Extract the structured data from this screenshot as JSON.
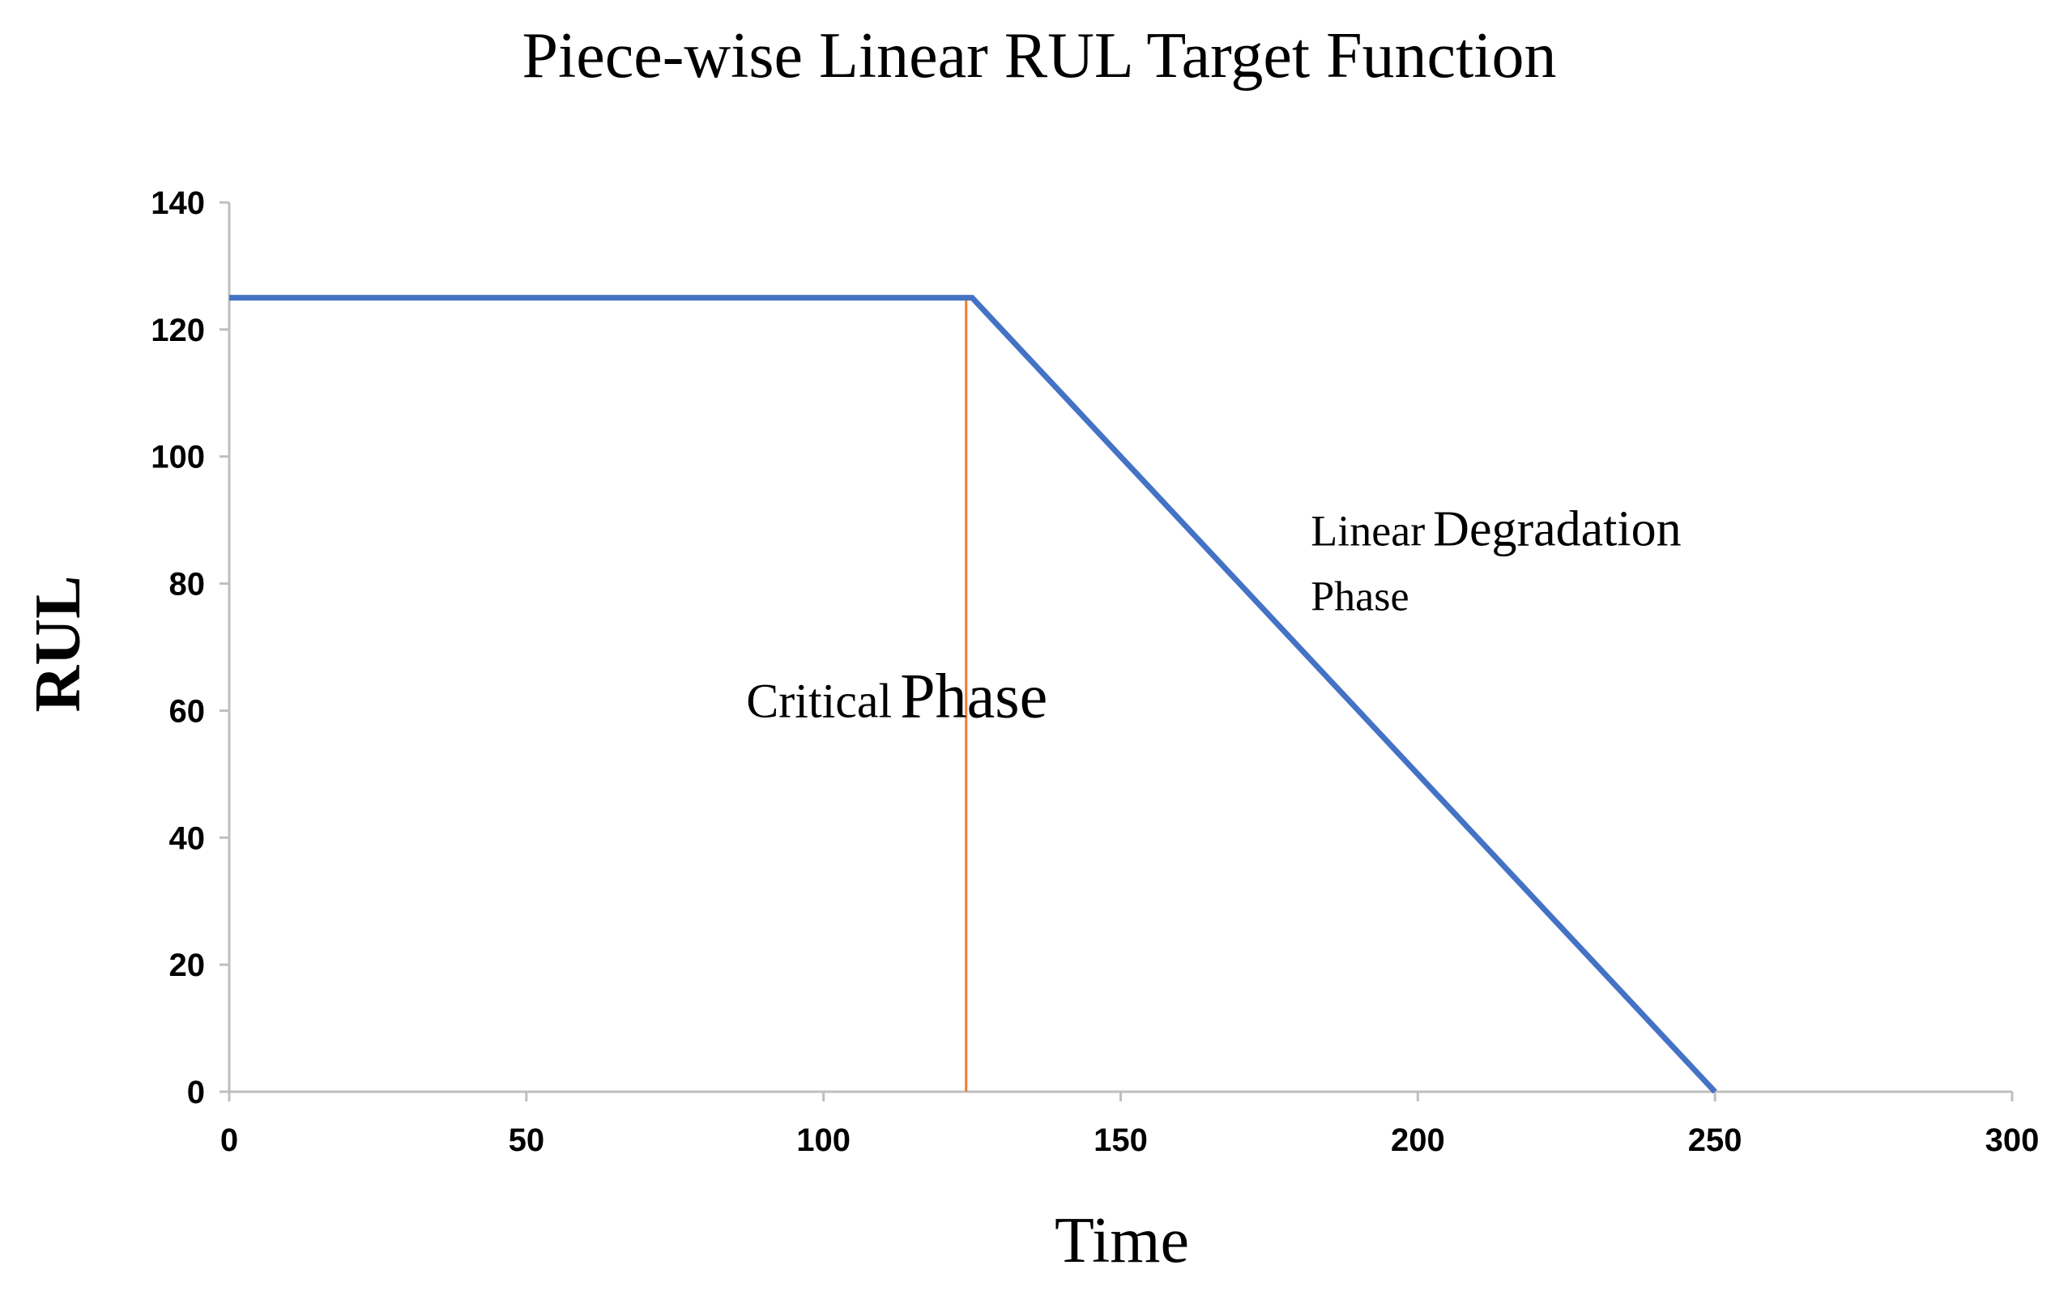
{
  "chart_data": {
    "type": "line",
    "title": "Piece-wise Linear RUL Target Function",
    "xlabel": "Time",
    "ylabel": "RUL",
    "xlim": [
      0,
      300
    ],
    "ylim": [
      0,
      140
    ],
    "x_ticks": [
      0,
      50,
      100,
      150,
      200,
      250,
      300
    ],
    "y_ticks": [
      0,
      20,
      40,
      60,
      80,
      100,
      120,
      140
    ],
    "grid": false,
    "series": [
      {
        "color": "#4472c4",
        "points": [
          [
            0,
            125
          ],
          [
            125,
            125
          ],
          [
            250,
            0
          ]
        ]
      }
    ],
    "vertical_lines": [
      {
        "x": 124,
        "y_top": 125,
        "color": "#ed7d31"
      }
    ],
    "annotations": [
      {
        "text_small": "Critical",
        "text_large": "Phase",
        "x": 87,
        "y": 59
      },
      {
        "text_small": "Linear",
        "text_large": "Degradation",
        "text_line2": "Phase",
        "x": 182,
        "y": 86
      }
    ]
  }
}
